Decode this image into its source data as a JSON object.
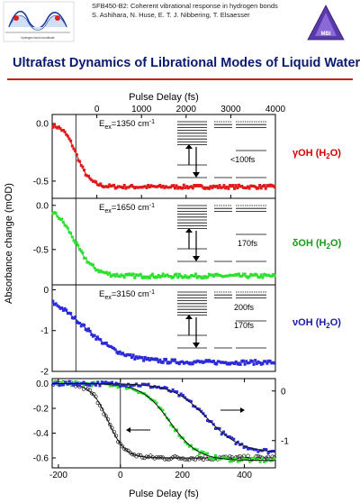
{
  "header": {
    "line1": "SFB450-B2: Coherent vibrational response in hydrogen bonds",
    "line2": "S. Ashihara, N. Huse, E. T. J. Nibbering, T. Elsaesser",
    "logo_caption": "hydrogen bond coordinate",
    "badge_text": "MBI"
  },
  "title": "Ultrafast Dynamics of Librational Modes of Liquid Water",
  "colors": {
    "red": "#e01818",
    "green": "#2ee02e",
    "blue": "#2a2ad8",
    "title": "#0a1a6e",
    "rule": "#c8201e",
    "mode_label": "#d80000"
  },
  "chart_data": [
    {
      "type": "scatter",
      "panel": "top",
      "xlabel_top": "Pulse Delay (fs)",
      "ylabel": "Absorbance change (mOD)",
      "xlim": [
        -1000,
        4000
      ],
      "xticks": [
        "0",
        "1000",
        "2000",
        "3000",
        "4000"
      ],
      "ylim": [
        -0.65,
        0.08
      ],
      "yticks": [
        "0.0",
        "-0.5"
      ],
      "annotation": "E",
      "annotation_sub": "ex",
      "annotation_rest": "=1350 cm",
      "annotation_sup": "-1",
      "level_label": "<100fs",
      "series": [
        {
          "color": "red",
          "start": 0.0,
          "end": -0.55,
          "t0": -450,
          "tau": 150
        }
      ]
    },
    {
      "type": "scatter",
      "panel": "middle",
      "xlim": [
        -1000,
        4000
      ],
      "ylim": [
        -0.9,
        0.08
      ],
      "yticks": [
        "0.0",
        "-0.5"
      ],
      "annotation": "E",
      "annotation_sub": "ex",
      "annotation_rest": "=1650 cm",
      "annotation_sup": "-1",
      "level_label": "170fs",
      "series": [
        {
          "color": "green",
          "start": 0.0,
          "end": -0.8,
          "t0": -500,
          "tau": 220
        }
      ]
    },
    {
      "type": "scatter",
      "panel": "lower",
      "xlim": [
        -1000,
        4000
      ],
      "ylim": [
        -2.0,
        0.12
      ],
      "yticks": [
        "0",
        "-1",
        "-2"
      ],
      "annotation": "E",
      "annotation_sub": "ex",
      "annotation_rest": "=3150 cm",
      "annotation_sup": "-1",
      "level_labels": [
        "200fs",
        "170fs"
      ],
      "series": [
        {
          "color": "blue",
          "start": 0.0,
          "end": -1.78,
          "t0": -300,
          "tau": 450
        }
      ]
    },
    {
      "type": "scatter",
      "panel": "bottom",
      "xlabel": "Pulse Delay (fs)",
      "xlim": [
        -220,
        500
      ],
      "xticks": [
        "-200",
        "0",
        "200",
        "400"
      ],
      "ylim": [
        -0.68,
        0.04
      ],
      "yticks_left": [
        "0.0",
        "-0.2",
        "-0.4",
        "-0.6"
      ],
      "yticks_right": [
        "0",
        "-1"
      ],
      "series": [
        {
          "color": "black",
          "marker": "open-circle",
          "start": 0.0,
          "end": -0.6,
          "center": -40,
          "width": 55
        },
        {
          "color": "green",
          "start": 0.0,
          "end": -0.62,
          "center": 160,
          "width": 90
        },
        {
          "color": "blue",
          "start": 0.0,
          "end": -0.56,
          "center": 280,
          "width": 110
        }
      ]
    }
  ],
  "mode_labels": [
    {
      "text": "γOH (H",
      "sub": "2",
      "tail": "O)"
    },
    {
      "text": "δOH (H",
      "sub": "2",
      "tail": "O)"
    },
    {
      "text": "νOH (H",
      "sub": "2",
      "tail": "O)"
    }
  ]
}
